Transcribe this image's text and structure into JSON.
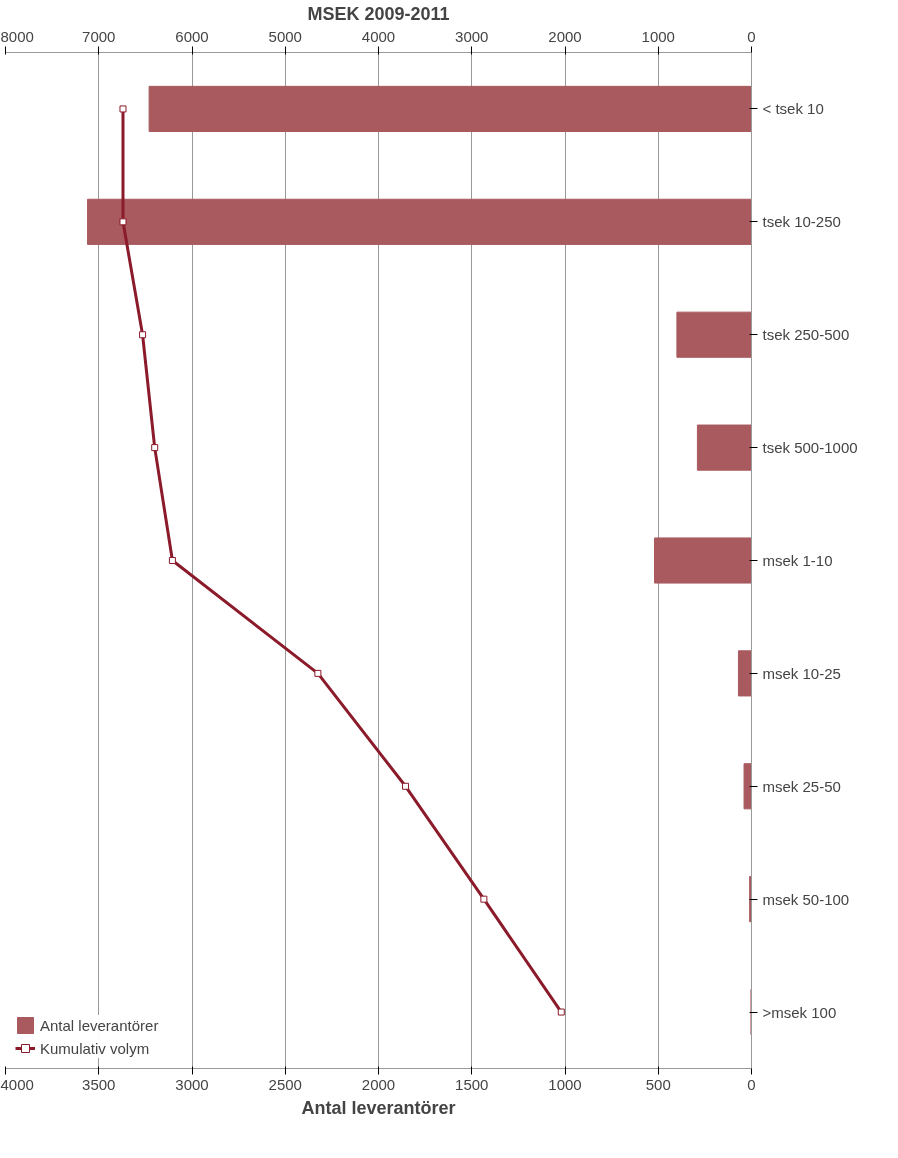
{
  "chart_data": {
    "type": "bar",
    "orientation": "horizontal",
    "categories": [
      "< tsek 10",
      "tsek 10-250",
      "tsek 250-500",
      "tsek 500-1000",
      "msek 1-10",
      "msek 10-25",
      "msek 25-50",
      "msek 50-100",
      ">msek 100"
    ],
    "series": [
      {
        "name": "Antal leverantörer",
        "color": "#a85a5e",
        "values": [
          3230,
          3560,
          400,
          290,
          520,
          70,
          40,
          10,
          3
        ]
      },
      {
        "name": "Kumulativ volym",
        "type": "line",
        "axis": "x2",
        "color": "#8b1a2a",
        "marker": "square",
        "values": [
          6740,
          6740,
          6530,
          6400,
          6210,
          4650,
          3710,
          2870,
          2040
        ]
      }
    ],
    "xlabel": "Antal leverantörer",
    "x2label": "MSEK 2009-2011",
    "xlim": [
      4000,
      0
    ],
    "xticks": [
      4000,
      3500,
      3000,
      2500,
      2000,
      1500,
      1000,
      500,
      0
    ],
    "x2lim": [
      8000,
      0
    ],
    "x2ticks": [
      8000,
      7000,
      6000,
      5000,
      4000,
      3000,
      2000,
      1000,
      0
    ],
    "grid": "x",
    "legend": "bottom left"
  }
}
